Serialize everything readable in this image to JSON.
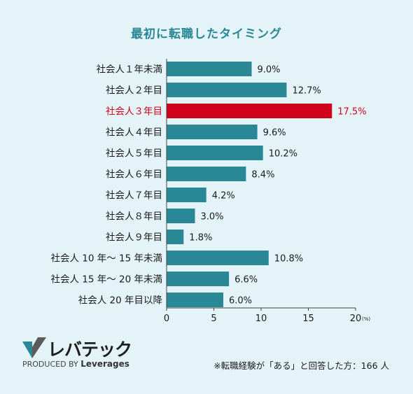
{
  "chart_data": {
    "type": "bar",
    "orientation": "horizontal",
    "title": "最初に転職したタイミング",
    "categories": [
      "社会人１年未満",
      "社会人２年目",
      "社会人３年目",
      "社会人４年目",
      "社会人５年目",
      "社会人６年目",
      "社会人７年目",
      "社会人８年目",
      "社会人９年目",
      "社会人 10 年〜 15 年未満",
      "社会人 15 年〜 20 年未満",
      "社会人 20 年目以降"
    ],
    "values": [
      9.0,
      12.7,
      17.5,
      9.6,
      10.2,
      8.4,
      4.2,
      3.0,
      1.8,
      10.8,
      6.6,
      6.0
    ],
    "value_labels": [
      "9.0%",
      "12.7%",
      "17.5%",
      "9.6%",
      "10.2%",
      "8.4%",
      "4.2%",
      "3.0%",
      "1.8%",
      "10.8%",
      "6.6%",
      "6.0%"
    ],
    "highlight_index": 2,
    "xlim": [
      0,
      20
    ],
    "xticks": [
      "0",
      "5",
      "10",
      "15",
      "20"
    ],
    "x_unit": "(%)",
    "bar_color": "#2a8896",
    "highlight_color": "#d0021b",
    "grid": false
  },
  "logo": {
    "name": "レバテック",
    "sub_prefix": "PRODUCED BY",
    "sub_brand": "Leverages"
  },
  "footnote": "※転職経験が「ある」と回答した方：166 人",
  "colors": {
    "background": "#e4f3f7",
    "title": "#2a8896",
    "logo_mark": "#2a8896"
  }
}
